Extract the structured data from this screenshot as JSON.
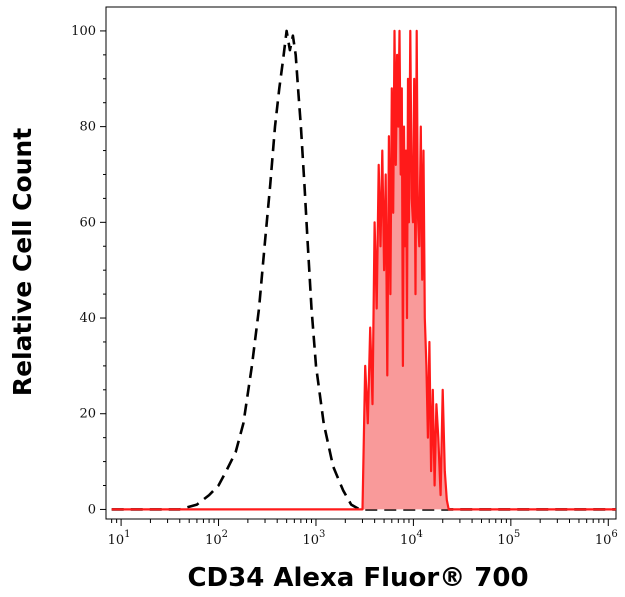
{
  "chart_data": {
    "type": "area",
    "xlabel": "CD34 Alexa Fluor® 700",
    "ylabel": "Relative Cell Count",
    "x_scale": "log",
    "xlim": [
      7,
      1200000
    ],
    "ylim": [
      -2,
      105
    ],
    "y_ticks": [
      0,
      20,
      40,
      60,
      80,
      100
    ],
    "y_tick_labels": [
      "0",
      "20",
      "40",
      "60",
      "80",
      "100"
    ],
    "x_ticks": [
      10,
      100,
      1000,
      10000,
      100000,
      1000000
    ],
    "x_tick_labels": [
      {
        "base": "10",
        "exp": "1"
      },
      {
        "base": "10",
        "exp": "2"
      },
      {
        "base": "10",
        "exp": "3"
      },
      {
        "base": "10",
        "exp": "4"
      },
      {
        "base": "10",
        "exp": "5"
      },
      {
        "base": "10",
        "exp": "6"
      }
    ],
    "series": [
      {
        "style": "dashed",
        "color": "#000000",
        "x": [
          8,
          40,
          60,
          80,
          100,
          120,
          150,
          180,
          220,
          260,
          300,
          340,
          380,
          420,
          460,
          500,
          540,
          580,
          620,
          660,
          700,
          760,
          820,
          900,
          1000,
          1200,
          1500,
          1900,
          2300,
          2800,
          1200000
        ],
        "y": [
          0,
          0,
          1,
          3,
          5,
          8,
          12,
          18,
          30,
          42,
          56,
          68,
          80,
          88,
          94,
          100,
          96,
          99,
          95,
          87,
          80,
          68,
          56,
          42,
          30,
          18,
          9,
          4,
          1,
          0,
          0
        ]
      },
      {
        "style": "filled",
        "color": "#ff1a1a",
        "fill": "#f99a9a",
        "x": [
          8,
          3000,
          3200,
          3400,
          3600,
          3800,
          4000,
          4200,
          4400,
          4600,
          4800,
          5000,
          5200,
          5400,
          5600,
          5800,
          6000,
          6200,
          6400,
          6600,
          6800,
          7000,
          7200,
          7400,
          7600,
          7800,
          8000,
          8200,
          8400,
          8600,
          8800,
          9000,
          9300,
          9600,
          9900,
          10200,
          10500,
          10800,
          11100,
          11500,
          11900,
          12300,
          12700,
          13100,
          13600,
          14100,
          14600,
          15200,
          15800,
          16500,
          17200,
          18000,
          19000,
          20000,
          21000,
          22000,
          23000,
          1200000
        ],
        "y": [
          0,
          0,
          30,
          18,
          38,
          22,
          60,
          42,
          72,
          55,
          75,
          50,
          70,
          28,
          78,
          45,
          88,
          62,
          100,
          72,
          95,
          80,
          100,
          70,
          88,
          30,
          80,
          55,
          75,
          40,
          90,
          60,
          100,
          65,
          60,
          90,
          45,
          100,
          62,
          55,
          80,
          48,
          75,
          40,
          30,
          15,
          35,
          8,
          25,
          5,
          22,
          15,
          3,
          25,
          8,
          2,
          0,
          0
        ]
      }
    ]
  }
}
